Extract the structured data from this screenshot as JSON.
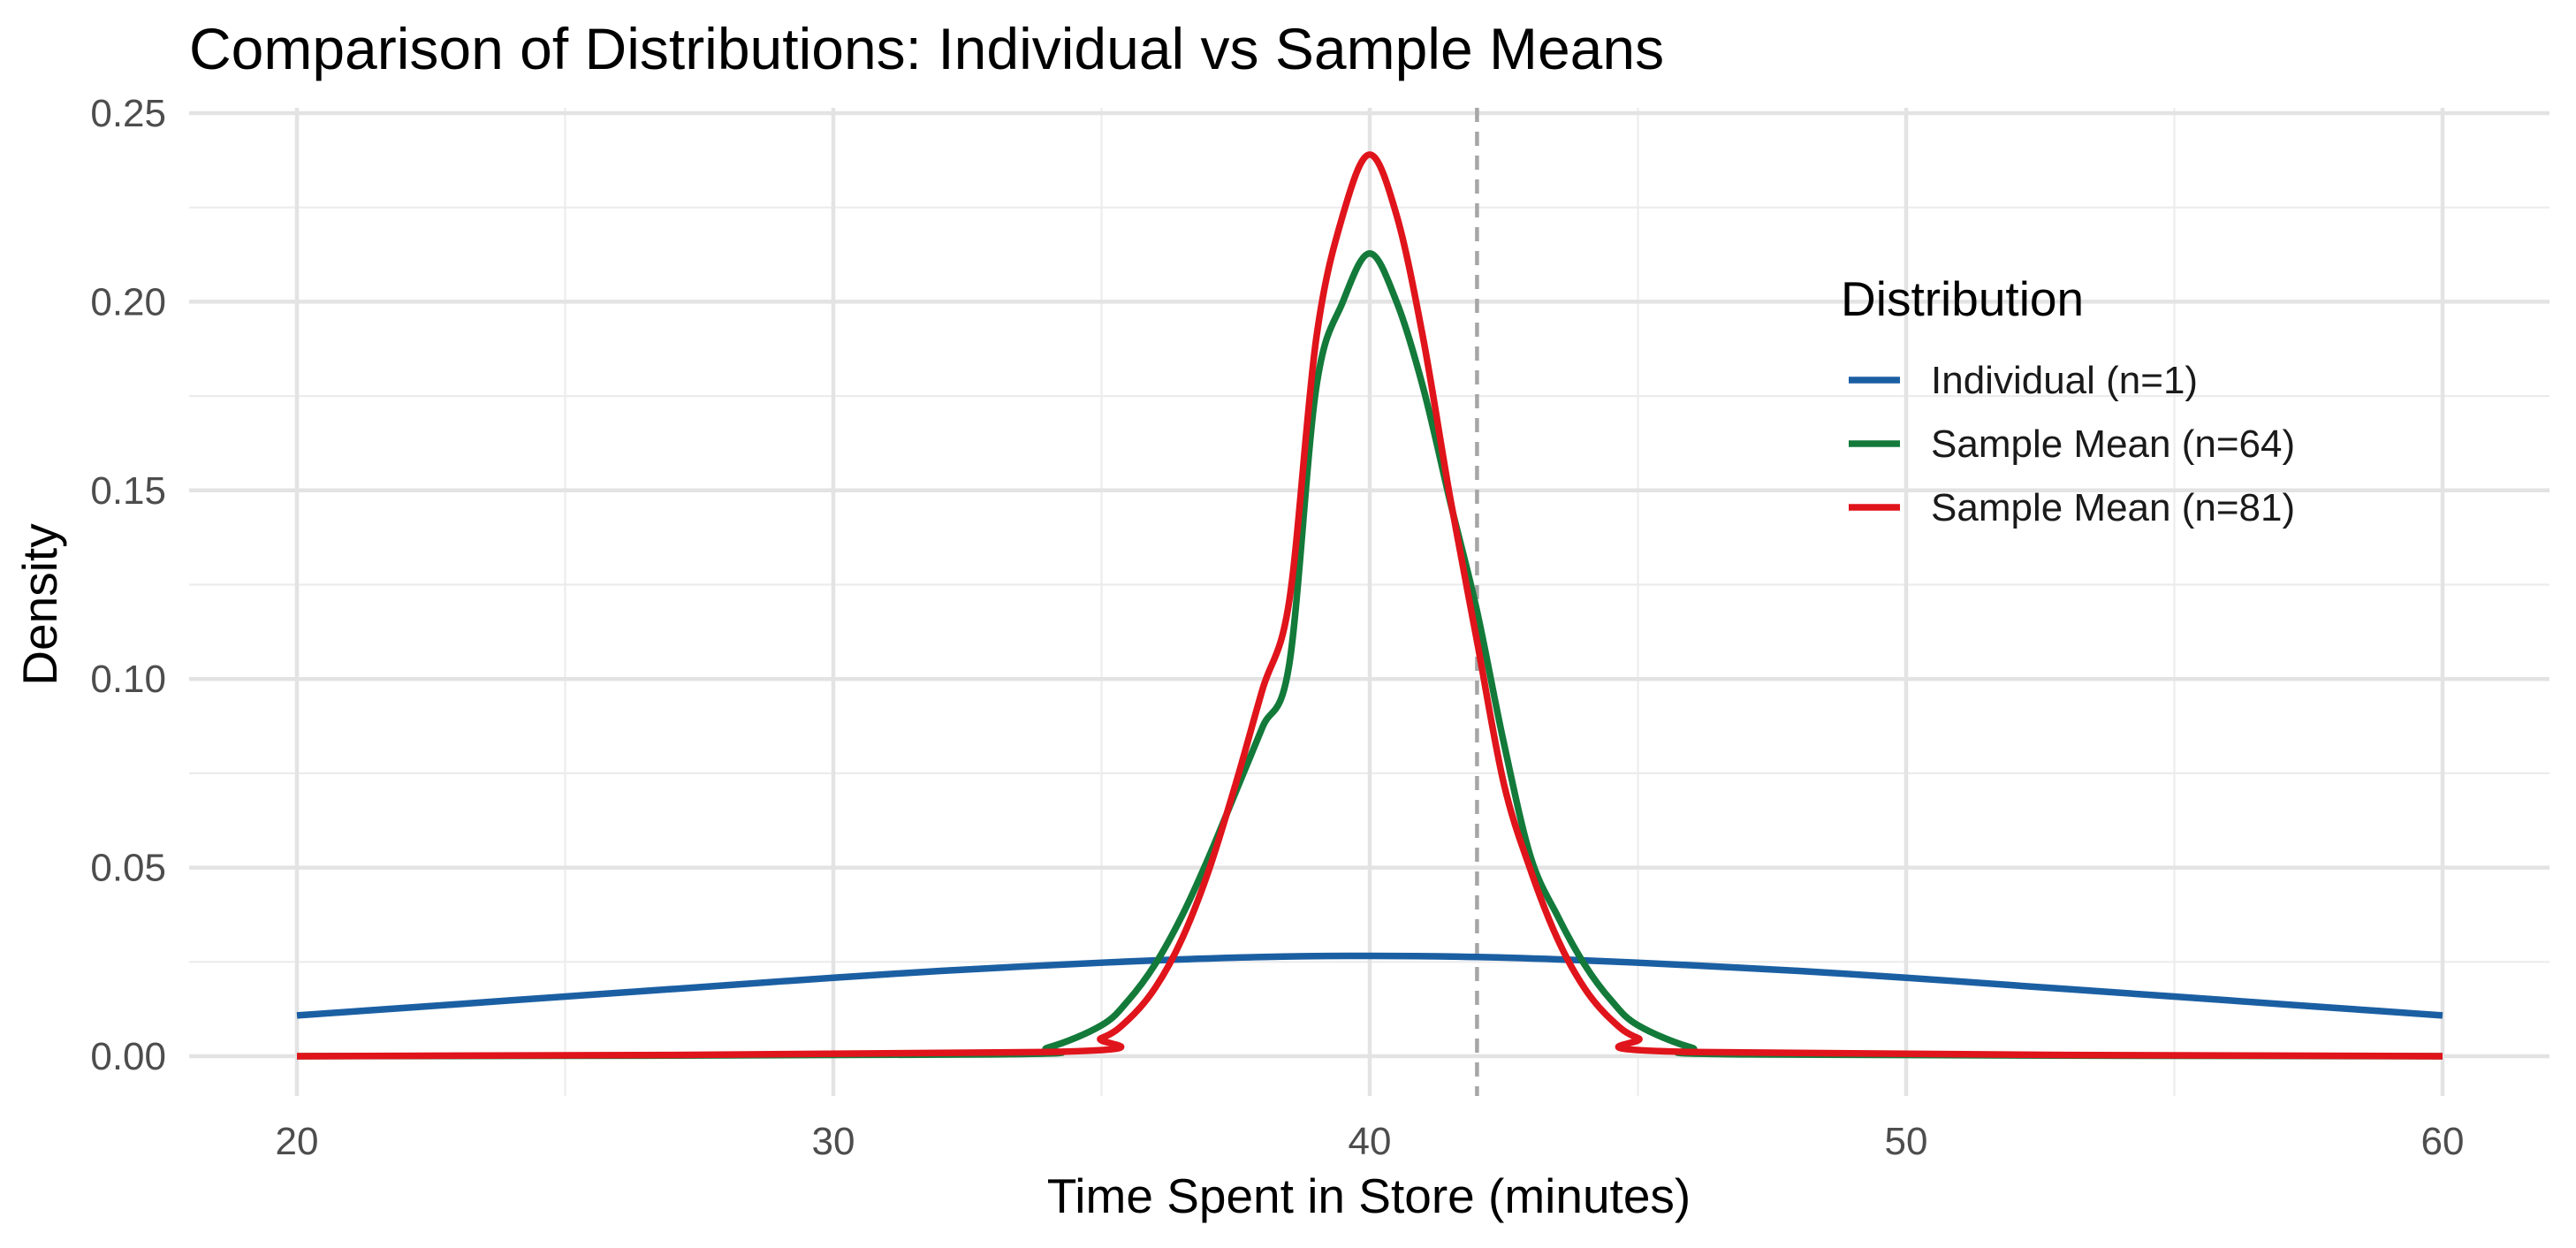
{
  "chart_data": {
    "type": "line",
    "title": "Comparison of Distributions: Individual vs Sample Means",
    "xlabel": "Time Spent in Store (minutes)",
    "ylabel": "Density",
    "xlim": [
      20,
      60
    ],
    "ylim": [
      0,
      0.25
    ],
    "x_ticks": [
      "20",
      "30",
      "40",
      "50",
      "60"
    ],
    "y_ticks": [
      "0.00",
      "0.05",
      "0.10",
      "0.15",
      "0.20",
      "0.25"
    ],
    "grid": true,
    "legend": {
      "title": "Distribution",
      "placement": "top-right (inside plot)"
    },
    "reference_line": {
      "x": 42,
      "style": "dashed",
      "color": "#a6a6a6"
    },
    "series": [
      {
        "name": "Individual (n=1)",
        "color": "#1b5fa3",
        "x": [
          20,
          22,
          24,
          26,
          28,
          30,
          32,
          34,
          36,
          38,
          40,
          42,
          44,
          46,
          48,
          50,
          52,
          54,
          56,
          58,
          60
        ],
        "y": [
          0.0108,
          0.0128,
          0.0148,
          0.0168,
          0.0188,
          0.0208,
          0.0226,
          0.0241,
          0.0254,
          0.0263,
          0.0266,
          0.0263,
          0.0254,
          0.0241,
          0.0226,
          0.0208,
          0.0188,
          0.0168,
          0.0148,
          0.0128,
          0.0108
        ]
      },
      {
        "name": "Sample Mean (n=64)",
        "color": "#137a3a",
        "x": [
          20,
          33,
          34,
          35,
          35.5,
          36,
          36.5,
          37,
          37.5,
          38,
          38.5,
          39,
          39.5,
          40,
          40.5,
          41,
          41.5,
          42,
          42.5,
          43,
          43.5,
          44,
          44.5,
          45,
          46,
          47,
          60
        ],
        "y": [
          0.0,
          0.0005,
          0.0023,
          0.0082,
          0.0148,
          0.0244,
          0.0372,
          0.0528,
          0.07,
          0.0872,
          0.104,
          0.177,
          0.2,
          0.2128,
          0.2,
          0.177,
          0.147,
          0.118,
          0.083,
          0.0528,
          0.0372,
          0.0244,
          0.0148,
          0.0082,
          0.0023,
          0.0005,
          0.0
        ]
      },
      {
        "name": "Sample Mean (n=81)",
        "color": "#e0141b",
        "x": [
          20,
          34,
          35,
          35.5,
          36,
          36.5,
          37,
          37.5,
          38,
          38.5,
          39,
          39.5,
          40,
          40.5,
          41,
          41.5,
          42,
          42.5,
          43,
          43.5,
          44,
          44.5,
          45,
          46,
          60
        ],
        "y": [
          0.0,
          0.0011,
          0.0048,
          0.0097,
          0.0181,
          0.0311,
          0.0493,
          0.0722,
          0.0972,
          0.1208,
          0.19,
          0.223,
          0.239,
          0.223,
          0.19,
          0.148,
          0.11,
          0.0722,
          0.0493,
          0.0311,
          0.0181,
          0.0097,
          0.0048,
          0.0011,
          0.0
        ]
      }
    ]
  }
}
